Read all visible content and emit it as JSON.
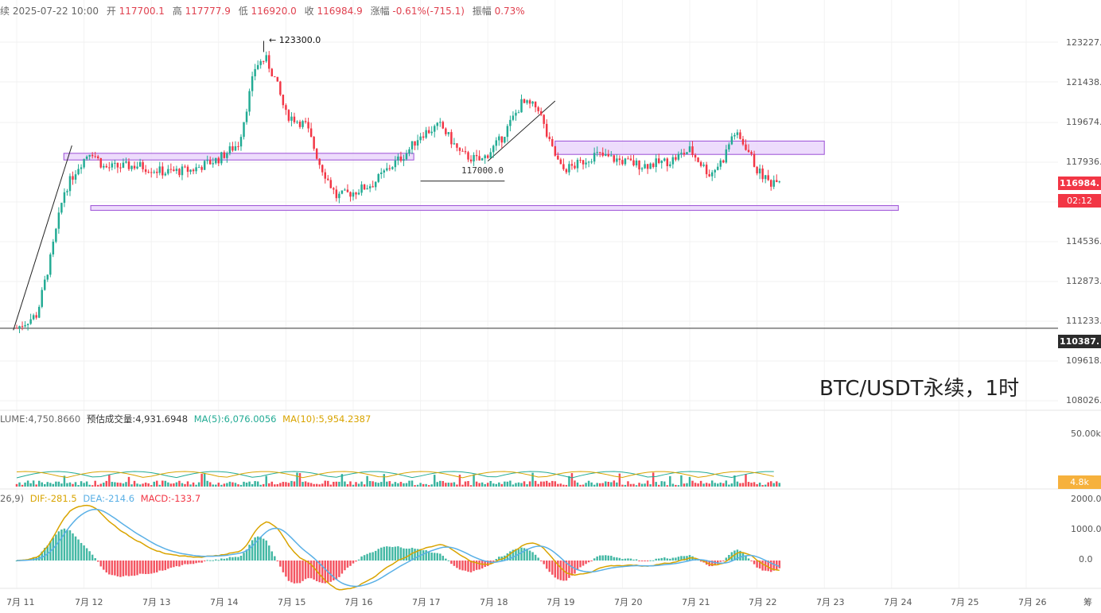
{
  "header": {
    "prefix": "续",
    "datetime": "2025-07-22 10:00",
    "open_label": "开",
    "open": "117700.1",
    "high_label": "高",
    "high": "117777.9",
    "low_label": "低",
    "low": "116920.0",
    "close_label": "收",
    "close": "116984.9",
    "change_label": "涨幅",
    "change": "-0.61%(-715.1)",
    "amplitude_label": "振幅",
    "amplitude": "0.73%"
  },
  "price_axis": [
    "123227.",
    "121438.",
    "119674.",
    "117936.",
    "114536.",
    "112873.",
    "111233.",
    "109618.",
    "108026."
  ],
  "price_tags": {
    "current": "116984.",
    "countdown": "02:12",
    "crosshair": "110387."
  },
  "annotations": {
    "high_marker": "← 123300.0",
    "mid_marker": "117000.0"
  },
  "watermark": "BTC/USDT永续，1时",
  "volume_panel": {
    "volume": "LUME:4,750.8660",
    "estimated": "预估成交量:4,931.6948",
    "ma5": "MA(5):6,076.0056",
    "ma10": "MA(10):5,954.2387",
    "axis_top": "50.00k",
    "current_tag": "4.8k"
  },
  "macd_panel": {
    "params": "26,9)",
    "dif": "DIF:-281.5",
    "dea": "DEA:-214.6",
    "macd": "MACD:-133.7",
    "axis": [
      "2000.0",
      "1000.0",
      "0.0"
    ]
  },
  "x_axis": [
    "7月 11",
    "7月 12",
    "7月 13",
    "7月 14",
    "7月 15",
    "7月 16",
    "7月 17",
    "7月 18",
    "7月 19",
    "7月 20",
    "7月 21",
    "7月 22",
    "7月 23",
    "7月 24",
    "7月 25",
    "7月 26",
    "筹"
  ],
  "chart_data": {
    "type": "candlestick",
    "symbol": "BTC/USDT永续",
    "interval": "1时",
    "anchors": [
      {
        "day": 0.0,
        "price": 110400
      },
      {
        "day": 0.3,
        "price": 111000
      },
      {
        "day": 0.5,
        "price": 113500
      },
      {
        "day": 0.7,
        "price": 116500
      },
      {
        "day": 0.9,
        "price": 117600
      },
      {
        "day": 1.1,
        "price": 118400
      },
      {
        "day": 1.3,
        "price": 117600
      },
      {
        "day": 1.8,
        "price": 117700
      },
      {
        "day": 2.2,
        "price": 117400
      },
      {
        "day": 2.6,
        "price": 117500
      },
      {
        "day": 3.0,
        "price": 118000
      },
      {
        "day": 3.3,
        "price": 118700
      },
      {
        "day": 3.55,
        "price": 122200
      },
      {
        "day": 3.7,
        "price": 122500
      },
      {
        "day": 3.85,
        "price": 121500
      },
      {
        "day": 4.0,
        "price": 120000
      },
      {
        "day": 4.3,
        "price": 119500
      },
      {
        "day": 4.5,
        "price": 117800
      },
      {
        "day": 4.75,
        "price": 116300
      },
      {
        "day": 5.0,
        "price": 116500
      },
      {
        "day": 5.3,
        "price": 116900
      },
      {
        "day": 5.5,
        "price": 117500
      },
      {
        "day": 5.8,
        "price": 118300
      },
      {
        "day": 6.0,
        "price": 119100
      },
      {
        "day": 6.3,
        "price": 119500
      },
      {
        "day": 6.6,
        "price": 118200
      },
      {
        "day": 6.9,
        "price": 117900
      },
      {
        "day": 7.2,
        "price": 118900
      },
      {
        "day": 7.5,
        "price": 120500
      },
      {
        "day": 7.75,
        "price": 120300
      },
      {
        "day": 7.9,
        "price": 118800
      },
      {
        "day": 8.1,
        "price": 117500
      },
      {
        "day": 8.3,
        "price": 117700
      },
      {
        "day": 8.6,
        "price": 118200
      },
      {
        "day": 9.0,
        "price": 117900
      },
      {
        "day": 9.3,
        "price": 117700
      },
      {
        "day": 9.7,
        "price": 117900
      },
      {
        "day": 10.0,
        "price": 118400
      },
      {
        "day": 10.3,
        "price": 117300
      },
      {
        "day": 10.5,
        "price": 118000
      },
      {
        "day": 10.65,
        "price": 119200
      },
      {
        "day": 10.85,
        "price": 118500
      },
      {
        "day": 11.0,
        "price": 117500
      },
      {
        "day": 11.2,
        "price": 116900
      },
      {
        "day": 11.3,
        "price": 117200
      },
      {
        "day": 11.35,
        "price": 116984.9
      }
    ],
    "high": 123300.0,
    "zones": [
      {
        "from_day": 0.7,
        "to_day": 5.9,
        "low": 117950,
        "high": 118250
      },
      {
        "from_day": 8.0,
        "to_day": 12.0,
        "low": 118200,
        "high": 118800
      },
      {
        "from_day": 1.1,
        "to_day": 13.1,
        "low": 115700,
        "high": 115900
      }
    ],
    "price_levels": [
      117000.0,
      110387,
      123300.0
    ],
    "volume_ma": {
      "ma5": 6076.0056,
      "ma10": 5954.2387,
      "current": 4750.866,
      "estimated": 4931.6948
    },
    "macd": {
      "dif": -281.5,
      "dea": -214.6,
      "macd": -133.7,
      "ylim": [
        -1000,
        2000
      ]
    }
  },
  "colors": {
    "up": "#22ab94",
    "down": "#f23645",
    "dif": "#d9a400",
    "dea": "#5ab0e6",
    "zone_fill": "#e9d3fb",
    "zone_stroke": "#9b4fd6"
  }
}
